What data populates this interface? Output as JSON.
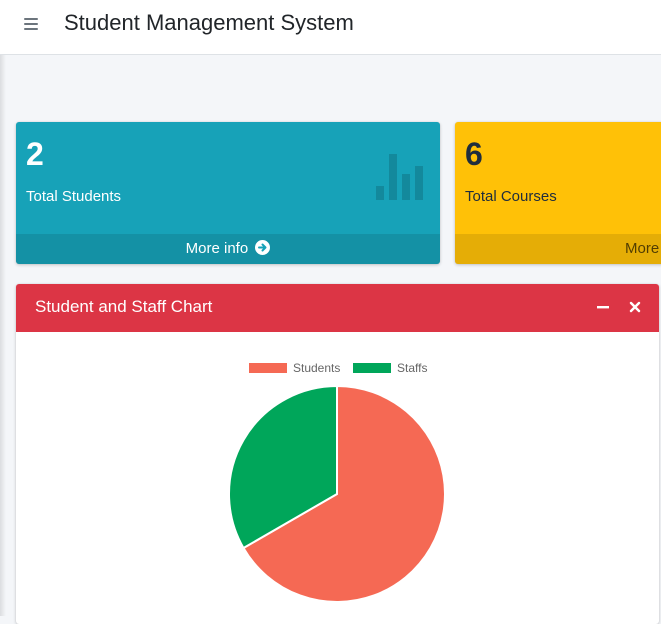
{
  "header": {
    "title": "Student Management System",
    "menu_icon": "hamburger-icon"
  },
  "stats": [
    {
      "value": "2",
      "label": "Total Students",
      "footer": "More info",
      "icon": "bar-chart-icon",
      "color": "#17a2b8"
    },
    {
      "value": "6",
      "label": "Total Courses",
      "footer": "More info",
      "color": "#ffc107"
    }
  ],
  "chart_card": {
    "title": "Student and Staff Chart",
    "header_color": "#dc3545",
    "tools": [
      "minus-icon",
      "close-icon"
    ]
  },
  "chart_data": {
    "type": "pie",
    "categories": [
      "Students",
      "Staffs"
    ],
    "values": [
      2,
      1
    ],
    "colors": [
      "#f56954",
      "#00a65a"
    ],
    "legend": "top"
  }
}
